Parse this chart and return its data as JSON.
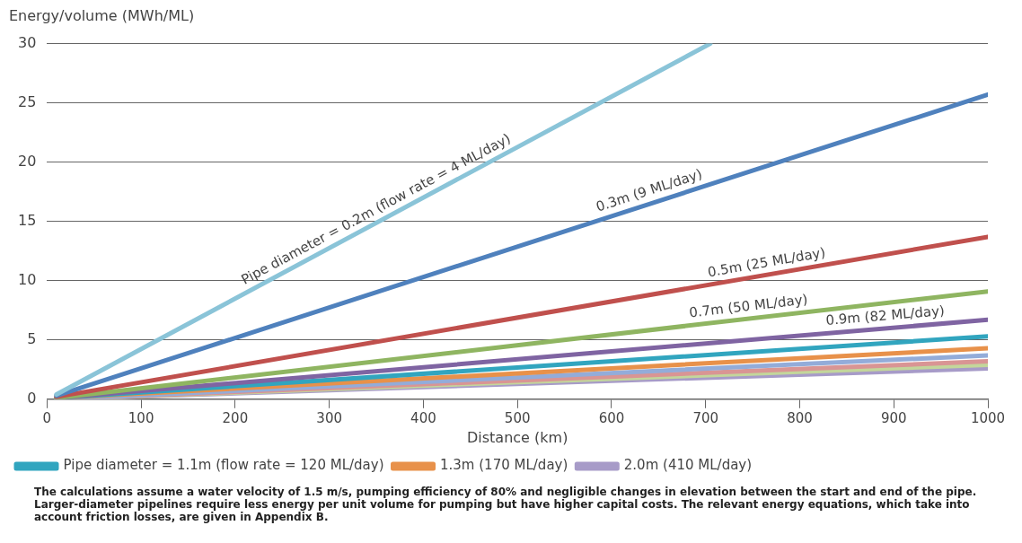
{
  "chart_data": {
    "type": "line",
    "xlabel": "Distance (km)",
    "ylabel": "Energy/volume (MWh/ML)",
    "xlim": [
      0,
      1000
    ],
    "xticks": [
      0,
      100,
      200,
      300,
      400,
      500,
      600,
      700,
      800,
      900,
      1000
    ],
    "ylim": [
      0,
      30
    ],
    "yticks": [
      0,
      5,
      10,
      15,
      20,
      25,
      30
    ],
    "grid": "y",
    "legend": "bottom",
    "line_style": "solid",
    "marker": "none",
    "series": [
      {
        "color": "#8ac4d8",
        "x": [
          10,
          705
        ],
        "values": [
          0.4,
          30
        ]
      },
      {
        "color": "#4f81bd",
        "x": [
          10,
          1000
        ],
        "values": [
          0.3,
          25.7
        ]
      },
      {
        "color": "#c0504d",
        "x": [
          10,
          1000
        ],
        "values": [
          0.2,
          13.7
        ]
      },
      {
        "color": "#8fb561",
        "x": [
          10,
          1000
        ],
        "values": [
          0.1,
          9.1
        ]
      },
      {
        "color": "#7f64a2",
        "x": [
          10,
          1000
        ],
        "values": [
          0.1,
          6.7
        ]
      },
      {
        "name": "Pipe diameter = 1.1m (flow rate = 120 ML/day)",
        "color": "#31a5bf",
        "x": [
          10,
          1000
        ],
        "values": [
          0.1,
          5.3
        ]
      },
      {
        "name": "1.3m (170 ML/day)",
        "color": "#e8914a",
        "x": [
          10,
          1000
        ],
        "values": [
          0.1,
          4.3
        ]
      },
      {
        "color": "#93acd9",
        "x": [
          10,
          1000
        ],
        "values": [
          0,
          3.7
        ]
      },
      {
        "color": "#d99594",
        "x": [
          10,
          1000
        ],
        "values": [
          0,
          3.2
        ]
      },
      {
        "color": "#c3d69b",
        "x": [
          10,
          1000
        ],
        "values": [
          0,
          2.9
        ]
      },
      {
        "name": "2.0m (410 ML/day)",
        "color": "#a79bc8",
        "x": [
          10,
          1000
        ],
        "values": [
          0,
          2.6
        ]
      }
    ],
    "annotations": [
      {
        "text": "Pipe diameter = 0.2m (flow rate = 4 ML/day)",
        "x": 356,
        "y": 15.1
      },
      {
        "text": "0.3m (9 ML/day)",
        "x": 644,
        "y": 16.6
      },
      {
        "text": "0.5m (25 ML/day)",
        "x": 767,
        "y": 10.5
      },
      {
        "text": "0.7m (50 ML/day)",
        "x": 747,
        "y": 6.8
      },
      {
        "text": "0.9m (82 ML/day)",
        "x": 892,
        "y": 6.0
      },
      "The calculations assume a water velocity of 1.5 m/s, pumping efficiency of 80% and negligible changes in elevation between the start and end of the pipe. Larger-diameter pipelines require less energy per unit volume for pumping but have higher capital costs. The relevant energy equations, which take into account friction losses, are given in Appendix B."
    ]
  }
}
